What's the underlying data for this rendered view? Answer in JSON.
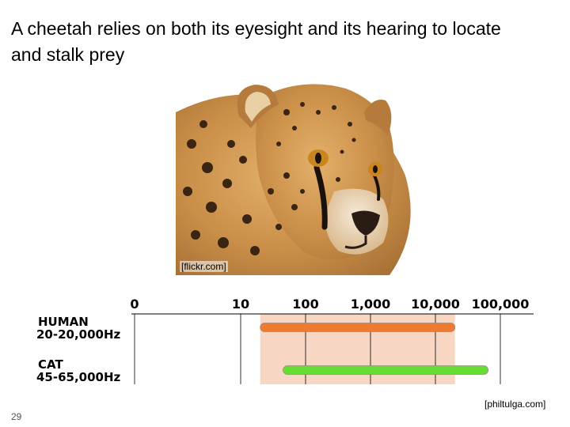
{
  "slide": {
    "title": "A cheetah relies on both its eyesight and its hearing to locate and stalk prey",
    "page_number": "29"
  },
  "photo": {
    "subject": "cheetah",
    "credit": "[flickr.com]"
  },
  "chart_credit": "[philtulga.com]",
  "chart_data": {
    "type": "bar",
    "orientation": "horizontal",
    "x_scale": "log",
    "x_tick_labels": [
      "0",
      "10",
      "100",
      "1,000",
      "10,000",
      "100,000"
    ],
    "series": [
      {
        "name": "HUMAN",
        "range_label": "20-20,000Hz",
        "low": 20,
        "high": 20000,
        "color": "#f07a2e"
      },
      {
        "name": "CAT",
        "range_label": "45-65,000Hz",
        "low": 45,
        "high": 65000,
        "color": "#66dd33"
      }
    ],
    "highlight": {
      "low": 20,
      "high": 20000,
      "color": "#f7d7c4"
    }
  }
}
